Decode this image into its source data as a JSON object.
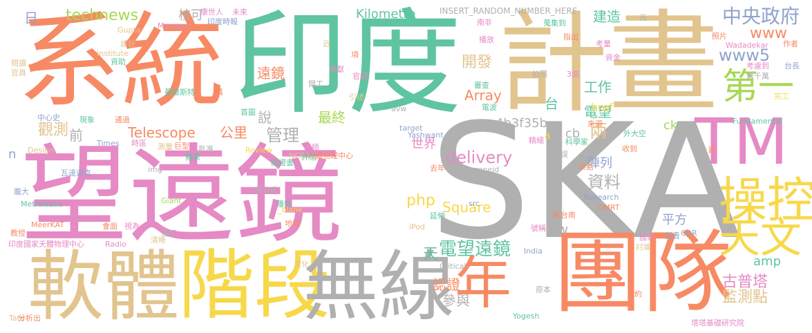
{
  "palette": {
    "salmon": "#f78a64",
    "green": "#5fc4a0",
    "tan": "#e2c48e",
    "pink": "#e58ac4",
    "gray": "#b0b0b0",
    "yellow": "#f7d84a",
    "lime": "#a6d854",
    "blue": "#8fa3cc"
  },
  "words": [
    {
      "text": "系統",
      "color": "salmon"
    },
    {
      "text": "印度",
      "color": "green"
    },
    {
      "text": "計畫",
      "color": "tan"
    },
    {
      "text": "SKA",
      "color": "gray"
    },
    {
      "text": "望遠鏡",
      "color": "pink"
    },
    {
      "text": "團隊",
      "color": "salmon"
    },
    {
      "text": "軟體",
      "color": "tan"
    },
    {
      "text": "階段",
      "color": "yellow"
    },
    {
      "text": "無線",
      "color": "gray"
    },
    {
      "text": "年",
      "color": "salmon"
    },
    {
      "text": "TM",
      "color": "pink"
    },
    {
      "text": "操控",
      "color": "yellow"
    },
    {
      "text": "天文",
      "color": "yellow"
    },
    {
      "text": "第一",
      "color": "lime"
    },
    {
      "text": "中央政府",
      "color": "blue"
    },
    {
      "text": "www",
      "color": "salmon"
    },
    {
      "text": "www5",
      "color": "blue"
    },
    {
      "text": "technews",
      "color": "lime"
    },
    {
      "text": "Kilometre",
      "color": "green"
    },
    {
      "text": "Telescope",
      "color": "salmon"
    },
    {
      "text": "delivery",
      "color": "pink"
    },
    {
      "text": "電望遠鏡",
      "color": "green"
    },
    {
      "text": "遠鏡",
      "color": "salmon"
    },
    {
      "text": "開發",
      "color": "tan"
    },
    {
      "text": "工作",
      "color": "green"
    },
    {
      "text": "Array",
      "color": "salmon"
    },
    {
      "text": "a4b3f35b",
      "color": "gray"
    },
    {
      "text": "資料",
      "color": "gray"
    },
    {
      "text": "php",
      "color": "yellow"
    },
    {
      "text": "Square",
      "color": "yellow"
    },
    {
      "text": "最終",
      "color": "lime"
    },
    {
      "text": "觀測",
      "color": "tan"
    },
    {
      "text": "管理",
      "color": "gray"
    },
    {
      "text": "說",
      "color": "gray"
    },
    {
      "text": "前",
      "color": "gray"
    },
    {
      "text": "日",
      "color": "blue"
    },
    {
      "text": "核可",
      "color": "gray"
    },
    {
      "text": "建造",
      "color": "green"
    },
    {
      "text": "台",
      "color": "green"
    },
    {
      "text": "電望",
      "color": "green"
    },
    {
      "text": "兩",
      "color": "tan"
    },
    {
      "text": "陣列",
      "color": "blue"
    },
    {
      "text": "href",
      "color": "yellow"
    },
    {
      "text": "ck",
      "color": "lime"
    },
    {
      "text": "cb",
      "color": "gray"
    },
    {
      "text": "a",
      "color": "yellow"
    },
    {
      "text": "公里",
      "color": "salmon"
    },
    {
      "text": "世界",
      "color": "pink"
    },
    {
      "text": "tw",
      "color": "gray"
    },
    {
      "text": "天",
      "color": "green"
    },
    {
      "text": "amp",
      "color": "green"
    },
    {
      "text": "古普塔",
      "color": "pink"
    },
    {
      "text": "監測點",
      "color": "tan"
    },
    {
      "text": "平方",
      "color": "blue"
    },
    {
      "text": "認證",
      "color": "salmon"
    },
    {
      "text": "參與",
      "color": "gray"
    },
    {
      "text": "n",
      "color": "blue"
    },
    {
      "text": "INSERT_RANDOM_NUMBER_HERE",
      "color": "gray"
    },
    {
      "text": "康世人",
      "color": "pink"
    },
    {
      "text": "未來",
      "color": "pink"
    },
    {
      "text": "印度時報",
      "color": "blue"
    },
    {
      "text": "Gupta",
      "color": "tan"
    },
    {
      "text": "Manager",
      "color": "pink"
    },
    {
      "text": "設計",
      "color": "tan"
    },
    {
      "text": "Institute",
      "color": "tan"
    },
    {
      "text": "資助",
      "color": "green"
    },
    {
      "text": "閱讀",
      "color": "tan"
    },
    {
      "text": "官員",
      "color": "tan"
    },
    {
      "text": "曼徹斯特",
      "color": "green"
    },
    {
      "text": "中心史",
      "color": "blue"
    },
    {
      "text": "現象",
      "color": "green"
    },
    {
      "text": "通過",
      "color": "salmon"
    },
    {
      "text": "Times",
      "color": "blue"
    },
    {
      "text": "時區",
      "color": "pink"
    },
    {
      "text": "Design",
      "color": "tan"
    },
    {
      "text": "測量",
      "color": "tan"
    },
    {
      "text": "巨型",
      "color": "salmon"
    },
    {
      "text": "批准",
      "color": "gray"
    },
    {
      "text": "Review",
      "color": "yellow"
    },
    {
      "text": "NCRA",
      "color": "tan"
    },
    {
      "text": "天體物理中心",
      "color": "salmon"
    },
    {
      "text": "認證書",
      "color": "green"
    },
    {
      "text": "瓦達迪克",
      "color": "blue"
    },
    {
      "text": "img",
      "color": "gray"
    },
    {
      "text": "去年",
      "color": "salmon"
    },
    {
      "text": "zoneid",
      "color": "gray"
    },
    {
      "text": "資深",
      "color": "gray"
    },
    {
      "text": "銀河系",
      "color": "gray"
    },
    {
      "text": "播完",
      "color": "green"
    },
    {
      "text": "龐大",
      "color": "blue"
    },
    {
      "text": "Metrewave",
      "color": "green"
    },
    {
      "text": "Giant",
      "color": "lime"
    },
    {
      "text": "MeerKAT",
      "color": "salmon"
    },
    {
      "text": "教授",
      "color": "salmon"
    },
    {
      "text": "會面",
      "color": "salmon"
    },
    {
      "text": "視為",
      "color": "pink"
    },
    {
      "text": "施工",
      "color": "gray"
    },
    {
      "text": "清晰",
      "color": "tan"
    },
    {
      "text": "Radio",
      "color": "pink"
    },
    {
      "text": "印度國家天體物理中心",
      "color": "pink"
    },
    {
      "text": "文化",
      "color": "tan"
    },
    {
      "text": "Critical",
      "color": "gray"
    },
    {
      "text": "Tata",
      "color": "tan"
    },
    {
      "text": "分析出",
      "color": "salmon"
    },
    {
      "text": "Yogesh",
      "color": "green"
    },
    {
      "text": "原本",
      "color": "gray"
    },
    {
      "text": "塔塔基礎研究院",
      "color": "pink"
    },
    {
      "text": "India",
      "color": "blue"
    },
    {
      "text": "iPod",
      "color": "tan"
    },
    {
      "text": "地球",
      "color": "salmon"
    },
    {
      "text": "延伸",
      "color": "green"
    },
    {
      "text": "號稱",
      "color": "pink"
    },
    {
      "text": "新台南",
      "color": "salmon"
    },
    {
      "text": "GMRT",
      "color": "salmon"
    },
    {
      "text": "Research",
      "color": "blue"
    },
    {
      "text": "CDR",
      "color": "blue"
    },
    {
      "text": "負責",
      "color": "blue"
    },
    {
      "text": "國家",
      "color": "pink"
    },
    {
      "text": "討論",
      "color": "tan"
    },
    {
      "text": "約",
      "color": "salmon"
    },
    {
      "text": "元",
      "color": "gray"
    },
    {
      "text": "南非",
      "color": "pink"
    },
    {
      "text": "蒐集到",
      "color": "green"
    },
    {
      "text": "照片",
      "color": "salmon"
    },
    {
      "text": "作者",
      "color": "salmon"
    },
    {
      "text": "Wadadekar",
      "color": "pink"
    },
    {
      "text": "考量",
      "color": "pink"
    },
    {
      "text": "指出",
      "color": "salmon"
    },
    {
      "text": "資金",
      "color": "pink"
    },
    {
      "text": "考慮到",
      "color": "pink"
    },
    {
      "text": "台長",
      "color": "blue"
    },
    {
      "text": "3億",
      "color": "pink"
    },
    {
      "text": "拍回",
      "color": "gray"
    },
    {
      "text": "數千萬",
      "color": "gray"
    },
    {
      "text": "完工",
      "color": "yellow"
    },
    {
      "text": "Fundamental",
      "color": "green"
    },
    {
      "text": "來源",
      "color": "salmon"
    },
    {
      "text": "外大空",
      "color": "green"
    },
    {
      "text": "科學家",
      "color": "green"
    },
    {
      "text": "延誤",
      "color": "gray"
    },
    {
      "text": "收到",
      "color": "salmon"
    },
    {
      "text": "跨",
      "color": "salmon"
    },
    {
      "text": "精細",
      "color": "pink"
    },
    {
      "text": "談話",
      "color": "salmon"
    },
    {
      "text": "德",
      "color": "gray"
    },
    {
      "text": "src",
      "color": "blue"
    },
    {
      "text": "_blank",
      "color": "yellow"
    },
    {
      "text": "審查",
      "color": "green"
    },
    {
      "text": "電波",
      "color": "green"
    },
    {
      "text": "target",
      "color": "blue"
    },
    {
      "text": "Yashwant",
      "color": "blue"
    },
    {
      "text": "avw",
      "color": "gray"
    },
    {
      "text": "引述",
      "color": "tan"
    },
    {
      "text": "官網",
      "color": "pink"
    },
    {
      "text": "貢獻",
      "color": "pink"
    },
    {
      "text": "項",
      "color": "salmon"
    },
    {
      "text": "近",
      "color": "tan"
    },
    {
      "text": "閱工",
      "color": "gray"
    },
    {
      "text": "萬",
      "color": "salmon"
    },
    {
      "text": "首圖",
      "color": "green"
    },
    {
      "text": "鏡師",
      "color": "pink"
    },
    {
      "text": "評估",
      "color": "green"
    },
    {
      "text": "蘋果",
      "color": "green"
    },
    {
      "text": "播放",
      "color": "pink"
    }
  ]
}
